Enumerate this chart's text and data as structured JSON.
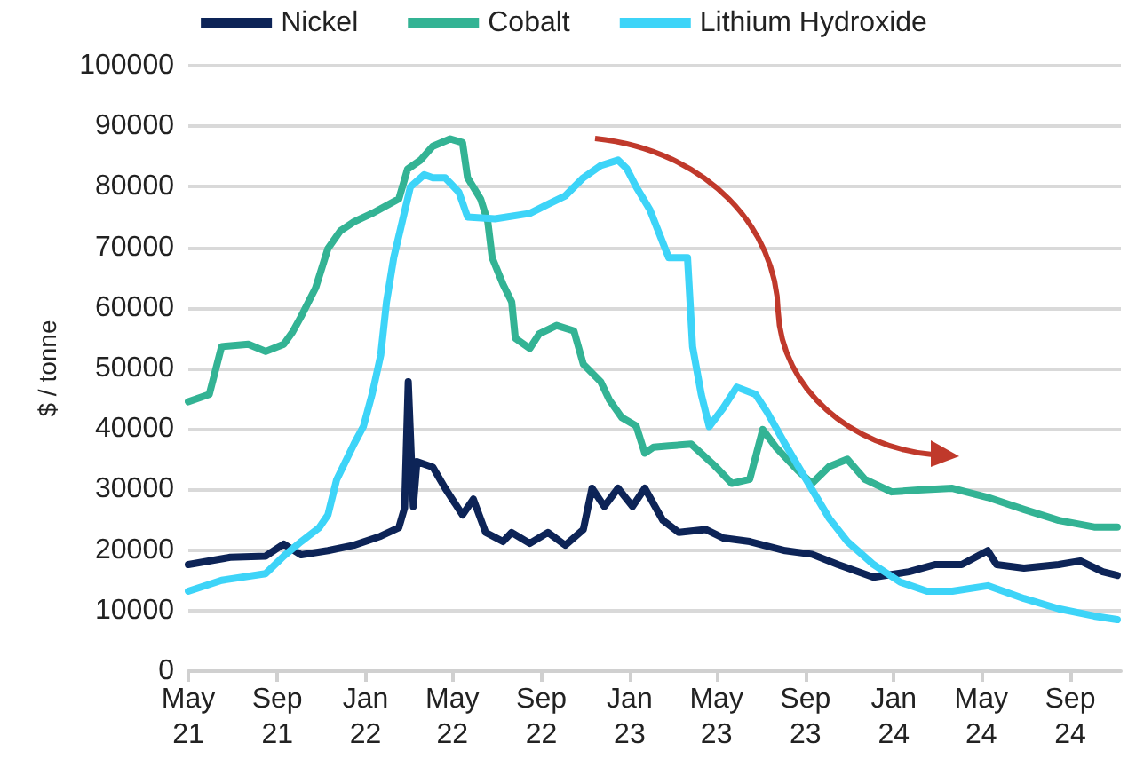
{
  "chart_data": {
    "type": "line",
    "ylabel": "$ / tonne",
    "ylim": [
      0,
      100000
    ],
    "yticks": [
      0,
      10000,
      20000,
      30000,
      40000,
      50000,
      60000,
      70000,
      80000,
      90000,
      100000
    ],
    "xlim": [
      "2021-05-01",
      "2024-11-10"
    ],
    "xticks": [
      {
        "value": "2021-05-01",
        "label": "May\n21"
      },
      {
        "value": "2021-09-01",
        "label": "Sep\n21"
      },
      {
        "value": "2022-01-01",
        "label": "Jan\n22"
      },
      {
        "value": "2022-05-01",
        "label": "May\n22"
      },
      {
        "value": "2022-09-01",
        "label": "Sep\n22"
      },
      {
        "value": "2023-01-01",
        "label": "Jan\n23"
      },
      {
        "value": "2023-05-01",
        "label": "May\n23"
      },
      {
        "value": "2023-09-01",
        "label": "Sep\n23"
      },
      {
        "value": "2024-01-01",
        "label": "Jan\n24"
      },
      {
        "value": "2024-05-01",
        "label": "May\n24"
      },
      {
        "value": "2024-09-01",
        "label": "Sep\n24"
      }
    ],
    "grid": "y",
    "legend": "top",
    "marker": "none",
    "line_style": "solid",
    "series": [
      {
        "name": "Nickel",
        "color": "#0d2457",
        "x": [
          "2021-05-01",
          "2021-06-28",
          "2021-08-16",
          "2021-09-10",
          "2021-10-04",
          "2021-11-10",
          "2021-12-16",
          "2022-01-22",
          "2022-02-16",
          "2022-02-24",
          "2022-03-01",
          "2022-03-08",
          "2022-03-13",
          "2022-04-04",
          "2022-04-21",
          "2022-05-15",
          "2022-05-30",
          "2022-06-16",
          "2022-07-10",
          "2022-07-22",
          "2022-08-16",
          "2022-09-10",
          "2022-10-04",
          "2022-10-29",
          "2022-11-10",
          "2022-11-27",
          "2022-12-16",
          "2023-01-05",
          "2023-01-22",
          "2023-02-16",
          "2023-03-10",
          "2023-04-16",
          "2023-05-10",
          "2023-06-16",
          "2023-08-04",
          "2023-09-10",
          "2023-10-16",
          "2023-12-04",
          "2024-01-22",
          "2024-02-28",
          "2024-04-04",
          "2024-05-10",
          "2024-05-22",
          "2024-06-29",
          "2024-08-16",
          "2024-09-15",
          "2024-10-16",
          "2024-11-05"
        ],
        "values": [
          17600,
          18800,
          19000,
          21000,
          19200,
          19900,
          20800,
          22300,
          23700,
          27000,
          47800,
          27200,
          34600,
          33700,
          30200,
          25800,
          28400,
          22900,
          21400,
          22900,
          21100,
          22900,
          20800,
          23400,
          30200,
          27200,
          30200,
          27200,
          30200,
          24900,
          22900,
          23400,
          22000,
          21400,
          19900,
          19300,
          17600,
          15500,
          16400,
          17600,
          17600,
          19900,
          17600,
          17000,
          17600,
          18200,
          16400,
          15800
        ]
      },
      {
        "name": "Cobalt",
        "color": "#33b394",
        "x": [
          "2021-05-01",
          "2021-05-30",
          "2021-06-16",
          "2021-07-23",
          "2021-08-16",
          "2021-09-10",
          "2021-09-22",
          "2021-10-04",
          "2021-10-24",
          "2021-11-10",
          "2021-11-27",
          "2021-12-16",
          "2022-01-10",
          "2022-02-16",
          "2022-02-28",
          "2022-03-18",
          "2022-04-04",
          "2022-04-28",
          "2022-05-15",
          "2022-05-22",
          "2022-06-09",
          "2022-06-19",
          "2022-06-25",
          "2022-07-10",
          "2022-07-22",
          "2022-07-27",
          "2022-08-16",
          "2022-08-29",
          "2022-09-22",
          "2022-10-16",
          "2022-10-29",
          "2022-11-22",
          "2022-12-04",
          "2022-12-21",
          "2023-01-10",
          "2023-01-22",
          "2023-02-03",
          "2023-02-24",
          "2023-03-27",
          "2023-04-28",
          "2023-05-22",
          "2023-06-16",
          "2023-07-04",
          "2023-07-22",
          "2023-08-21",
          "2023-09-10",
          "2023-10-04",
          "2023-10-29",
          "2023-11-22",
          "2023-12-29",
          "2024-02-04",
          "2024-03-22",
          "2024-05-10",
          "2024-06-29",
          "2024-08-16",
          "2024-10-04",
          "2024-11-05"
        ],
        "values": [
          44500,
          45700,
          53600,
          54000,
          52800,
          54000,
          56000,
          58600,
          63300,
          69800,
          72700,
          74200,
          75600,
          78000,
          82900,
          84400,
          86700,
          87900,
          87300,
          81500,
          78000,
          74200,
          68300,
          63900,
          61000,
          55000,
          53300,
          55700,
          57100,
          56200,
          50700,
          47800,
          44800,
          41900,
          40500,
          36000,
          37000,
          37200,
          37500,
          34000,
          31000,
          31700,
          39900,
          37000,
          33200,
          31000,
          33800,
          35000,
          31700,
          29600,
          29900,
          30200,
          28700,
          26700,
          24900,
          23800,
          23800
        ]
      },
      {
        "name": "Lithium Hydroxide",
        "color": "#3dd4f8",
        "x": [
          "2021-05-01",
          "2021-06-16",
          "2021-08-16",
          "2021-09-10",
          "2021-10-04",
          "2021-10-29",
          "2021-11-10",
          "2021-11-22",
          "2021-12-16",
          "2021-12-29",
          "2022-01-10",
          "2022-01-22",
          "2022-01-30",
          "2022-02-09",
          "2022-03-04",
          "2022-03-23",
          "2022-04-04",
          "2022-04-21",
          "2022-05-10",
          "2022-05-22",
          "2022-06-29",
          "2022-08-16",
          "2022-09-10",
          "2022-10-04",
          "2022-10-29",
          "2022-11-22",
          "2022-12-16",
          "2022-12-28",
          "2023-01-10",
          "2023-01-29",
          "2023-02-24",
          "2023-03-22",
          "2023-03-29",
          "2023-04-10",
          "2023-04-21",
          "2023-05-10",
          "2023-05-29",
          "2023-06-24",
          "2023-07-10",
          "2023-08-04",
          "2023-09-05",
          "2023-10-04",
          "2023-10-29",
          "2023-12-04",
          "2024-01-10",
          "2024-02-16",
          "2024-03-22",
          "2024-05-10",
          "2024-06-29",
          "2024-08-16",
          "2024-10-04",
          "2024-11-05"
        ],
        "values": [
          13200,
          15000,
          16100,
          19000,
          21400,
          23700,
          25800,
          31600,
          37500,
          40400,
          45700,
          52200,
          61000,
          68300,
          80000,
          82000,
          81500,
          81500,
          79100,
          75000,
          74700,
          75600,
          77100,
          78500,
          81500,
          83500,
          84400,
          83000,
          80000,
          76200,
          68300,
          68300,
          53600,
          45700,
          40400,
          43400,
          46900,
          45700,
          42800,
          37500,
          31000,
          25200,
          21400,
          17600,
          14700,
          13200,
          13200,
          14100,
          12000,
          10300,
          9100,
          8500
        ]
      }
    ]
  }
}
